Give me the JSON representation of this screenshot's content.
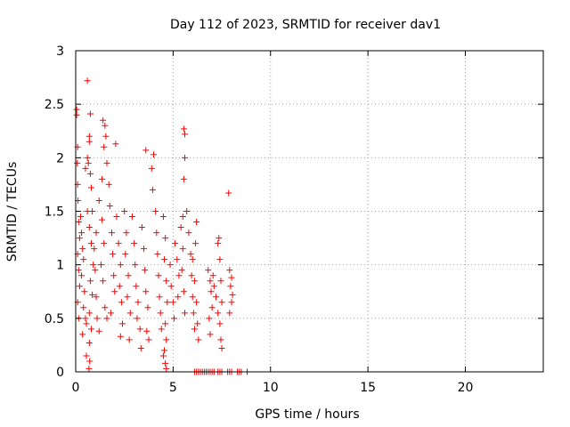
{
  "chart_data": {
    "type": "scatter",
    "title": "Day 112 of 2023, SRMTID for receiver dav1",
    "xlabel": "GPS time / hours",
    "ylabel": "SRMTID / TECUs",
    "xlim": [
      0,
      24
    ],
    "ylim": [
      0,
      3
    ],
    "xticks": [
      0,
      5,
      10,
      15,
      20
    ],
    "yticks": [
      0,
      0.5,
      1,
      1.5,
      2,
      2.5,
      3
    ],
    "ytick_labels": [
      "0",
      "0.5",
      "1",
      "1.5",
      "2",
      "2.5",
      "3"
    ],
    "grid": true,
    "marker": "+",
    "series": [
      {
        "name": "SRMTID",
        "color": "#ff0000",
        "points": [
          [
            0.05,
            2.45
          ],
          [
            0.05,
            2.4
          ],
          [
            0.1,
            2.1
          ],
          [
            0.08,
            1.95
          ],
          [
            0.1,
            1.75
          ],
          [
            0.12,
            1.6
          ],
          [
            0.15,
            1.4
          ],
          [
            0.2,
            1.25
          ],
          [
            0.1,
            1.1
          ],
          [
            0.15,
            0.95
          ],
          [
            0.2,
            0.8
          ],
          [
            0.1,
            0.65
          ],
          [
            0.3,
            1.3
          ],
          [
            0.35,
            1.15
          ],
          [
            0.4,
            1.05
          ],
          [
            0.3,
            0.9
          ],
          [
            0.45,
            0.75
          ],
          [
            0.4,
            0.6
          ],
          [
            0.5,
            0.5
          ],
          [
            0.55,
            0.45
          ],
          [
            0.35,
            0.35
          ],
          [
            0.6,
            1.5
          ],
          [
            0.5,
            1.9
          ],
          [
            0.6,
            2.0
          ],
          [
            0.6,
            2.72
          ],
          [
            0.75,
            2.41
          ],
          [
            0.7,
            2.2
          ],
          [
            0.7,
            2.15
          ],
          [
            0.65,
            1.95
          ],
          [
            0.75,
            1.85
          ],
          [
            0.8,
            1.72
          ],
          [
            0.85,
            1.5
          ],
          [
            0.7,
            1.35
          ],
          [
            0.8,
            1.2
          ],
          [
            0.9,
            1.0
          ],
          [
            0.75,
            0.85
          ],
          [
            0.85,
            0.72
          ],
          [
            0.7,
            0.55
          ],
          [
            0.8,
            0.4
          ],
          [
            0.7,
            0.27
          ],
          [
            0.72,
            0.1
          ],
          [
            0.68,
            0.03
          ],
          [
            0.95,
            1.15
          ],
          [
            1.0,
            0.95
          ],
          [
            1.05,
            0.7
          ],
          [
            1.1,
            0.5
          ],
          [
            1.2,
            0.38
          ],
          [
            1.05,
            1.3
          ],
          [
            1.2,
            1.6
          ],
          [
            1.35,
            1.8
          ],
          [
            1.4,
            2.35
          ],
          [
            1.5,
            2.3
          ],
          [
            1.45,
            2.1
          ],
          [
            1.55,
            2.2
          ],
          [
            1.6,
            1.95
          ],
          [
            1.35,
            1.42
          ],
          [
            1.45,
            1.2
          ],
          [
            1.3,
            1.0
          ],
          [
            1.4,
            0.85
          ],
          [
            1.5,
            0.6
          ],
          [
            1.6,
            0.5
          ],
          [
            1.7,
            1.75
          ],
          [
            1.75,
            1.55
          ],
          [
            1.85,
            1.3
          ],
          [
            1.9,
            1.1
          ],
          [
            1.95,
            0.9
          ],
          [
            2.0,
            0.75
          ],
          [
            1.8,
            0.55
          ],
          [
            2.05,
            2.13
          ],
          [
            2.1,
            1.45
          ],
          [
            2.2,
            1.2
          ],
          [
            2.3,
            1.0
          ],
          [
            2.25,
            0.8
          ],
          [
            2.35,
            0.65
          ],
          [
            2.4,
            0.45
          ],
          [
            2.3,
            0.33
          ],
          [
            2.5,
            1.5
          ],
          [
            2.6,
            1.3
          ],
          [
            2.55,
            1.1
          ],
          [
            2.7,
            0.9
          ],
          [
            2.65,
            0.7
          ],
          [
            2.8,
            0.55
          ],
          [
            2.75,
            0.3
          ],
          [
            2.9,
            1.45
          ],
          [
            3.0,
            1.2
          ],
          [
            3.05,
            1.0
          ],
          [
            3.1,
            0.8
          ],
          [
            3.2,
            0.65
          ],
          [
            3.15,
            0.5
          ],
          [
            3.3,
            0.4
          ],
          [
            3.35,
            0.22
          ],
          [
            3.4,
            1.35
          ],
          [
            3.5,
            1.15
          ],
          [
            3.55,
            0.95
          ],
          [
            3.6,
            0.75
          ],
          [
            3.7,
            0.6
          ],
          [
            3.65,
            0.38
          ],
          [
            3.75,
            0.3
          ],
          [
            3.6,
            2.07
          ],
          [
            3.9,
            1.9
          ],
          [
            4.0,
            2.03
          ],
          [
            3.95,
            1.7
          ],
          [
            4.1,
            1.5
          ],
          [
            4.15,
            1.3
          ],
          [
            4.2,
            1.1
          ],
          [
            4.25,
            0.9
          ],
          [
            4.3,
            0.7
          ],
          [
            4.35,
            0.55
          ],
          [
            4.4,
            0.4
          ],
          [
            4.5,
            1.45
          ],
          [
            4.6,
            1.25
          ],
          [
            4.55,
            1.05
          ],
          [
            4.65,
            0.85
          ],
          [
            4.7,
            0.65
          ],
          [
            4.6,
            0.45
          ],
          [
            4.65,
            0.3
          ],
          [
            4.55,
            0.2
          ],
          [
            4.6,
            0.08
          ],
          [
            4.65,
            0.03
          ],
          [
            4.5,
            0.15
          ],
          [
            4.85,
            1.0
          ],
          [
            4.9,
            0.8
          ],
          [
            5.0,
            0.65
          ],
          [
            5.05,
            0.5
          ],
          [
            5.1,
            1.2
          ],
          [
            5.2,
            1.05
          ],
          [
            5.3,
            0.9
          ],
          [
            5.25,
            0.7
          ],
          [
            5.4,
            1.35
          ],
          [
            5.5,
            1.15
          ],
          [
            5.45,
            0.95
          ],
          [
            5.55,
            0.75
          ],
          [
            5.6,
            0.55
          ],
          [
            5.5,
            1.45
          ],
          [
            5.55,
            1.8
          ],
          [
            5.6,
            2.0
          ],
          [
            5.55,
            2.27
          ],
          [
            5.6,
            2.22
          ],
          [
            5.7,
            1.5
          ],
          [
            5.8,
            1.3
          ],
          [
            5.9,
            1.1
          ],
          [
            5.95,
            0.9
          ],
          [
            6.0,
            0.7
          ],
          [
            6.05,
            0.55
          ],
          [
            6.1,
            0.4
          ],
          [
            6.0,
            1.05
          ],
          [
            6.1,
            0.85
          ],
          [
            6.2,
            0.65
          ],
          [
            6.25,
            0.45
          ],
          [
            6.3,
            0.3
          ],
          [
            6.15,
            1.2
          ],
          [
            6.2,
            1.4
          ],
          [
            6.8,
            0.95
          ],
          [
            6.9,
            0.85
          ],
          [
            6.95,
            0.75
          ],
          [
            7.0,
            0.6
          ],
          [
            6.85,
            0.5
          ],
          [
            6.9,
            0.35
          ],
          [
            7.05,
            0.9
          ],
          [
            7.1,
            0.8
          ],
          [
            7.2,
            0.7
          ],
          [
            7.3,
            1.2
          ],
          [
            7.35,
            1.25
          ],
          [
            7.4,
            1.05
          ],
          [
            7.45,
            0.85
          ],
          [
            7.5,
            0.65
          ],
          [
            7.4,
            0.45
          ],
          [
            7.45,
            0.3
          ],
          [
            7.5,
            0.22
          ],
          [
            7.3,
            0.55
          ],
          [
            7.85,
            1.67
          ],
          [
            7.9,
            0.95
          ],
          [
            7.95,
            0.8
          ],
          [
            8.0,
            0.65
          ],
          [
            7.9,
            0.55
          ],
          [
            8.05,
            0.72
          ],
          [
            8.0,
            0.88
          ],
          [
            0.25,
            1.45
          ],
          [
            0.15,
            0.5
          ],
          [
            0.55,
            0.15
          ],
          [
            6.1,
            0.0
          ],
          [
            6.2,
            0.0
          ],
          [
            6.3,
            0.0
          ],
          [
            6.4,
            0.0
          ],
          [
            6.5,
            0.0
          ],
          [
            6.6,
            0.0
          ],
          [
            6.7,
            0.0
          ],
          [
            6.8,
            0.0
          ],
          [
            6.9,
            0.0
          ],
          [
            7.0,
            0.0
          ],
          [
            7.1,
            0.0
          ],
          [
            7.3,
            0.0
          ],
          [
            7.4,
            0.0
          ],
          [
            7.5,
            0.0
          ],
          [
            7.8,
            0.0
          ],
          [
            7.9,
            0.0
          ],
          [
            8.0,
            0.0
          ],
          [
            8.3,
            0.0
          ],
          [
            8.4,
            0.0
          ],
          [
            8.5,
            0.0
          ],
          [
            8.8,
            0.0
          ]
        ]
      }
    ]
  }
}
